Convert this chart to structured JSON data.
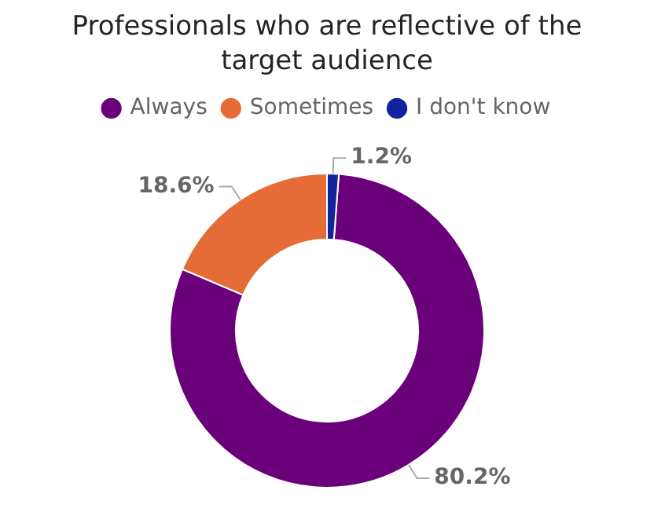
{
  "chart_data": {
    "type": "donut",
    "title": "Professionals who are reflective of the target audience",
    "categories": [
      "Always",
      "Sometimes",
      "I don't know"
    ],
    "values": [
      80.2,
      18.6,
      1.2
    ],
    "colors": [
      "#6b007b",
      "#e66c37",
      "#12239e"
    ],
    "value_labels": [
      "80.2%",
      "18.6%",
      "1.2%"
    ],
    "legend": "top"
  }
}
